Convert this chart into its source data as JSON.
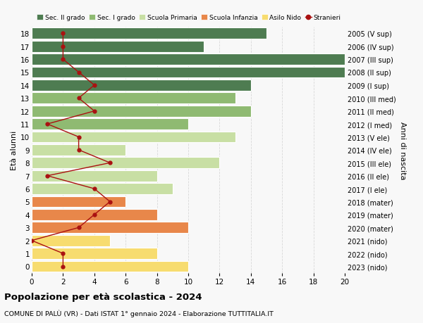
{
  "ages": [
    0,
    1,
    2,
    3,
    4,
    5,
    6,
    7,
    8,
    9,
    10,
    11,
    12,
    13,
    14,
    15,
    16,
    17,
    18
  ],
  "right_labels": [
    "2023 (nido)",
    "2022 (nido)",
    "2021 (nido)",
    "2020 (mater)",
    "2019 (mater)",
    "2018 (mater)",
    "2017 (I ele)",
    "2016 (II ele)",
    "2015 (III ele)",
    "2014 (IV ele)",
    "2013 (V ele)",
    "2012 (I med)",
    "2011 (II med)",
    "2010 (III med)",
    "2009 (I sup)",
    "2008 (II sup)",
    "2007 (III sup)",
    "2006 (IV sup)",
    "2005 (V sup)"
  ],
  "bar_values": [
    10,
    8,
    5,
    10,
    8,
    6,
    9,
    8,
    12,
    6,
    13,
    10,
    14,
    13,
    14,
    20,
    20,
    11,
    15
  ],
  "bar_colors": [
    "#f7dc6f",
    "#f7dc6f",
    "#f7dc6f",
    "#e8874a",
    "#e8874a",
    "#e8874a",
    "#c8dfa4",
    "#c8dfa4",
    "#c8dfa4",
    "#c8dfa4",
    "#c8dfa4",
    "#8fba72",
    "#8fba72",
    "#8fba72",
    "#4e7c51",
    "#4e7c51",
    "#4e7c51",
    "#4e7c51",
    "#4e7c51"
  ],
  "stranieri_values": [
    2,
    2,
    0,
    3,
    4,
    5,
    4,
    1,
    5,
    3,
    3,
    1,
    4,
    3,
    4,
    3,
    2,
    2,
    2
  ],
  "legend_labels": [
    "Sec. II grado",
    "Sec. I grado",
    "Scuola Primaria",
    "Scuola Infanzia",
    "Asilo Nido",
    "Stranieri"
  ],
  "legend_colors": [
    "#4e7c51",
    "#8fba72",
    "#c8dfa4",
    "#e8874a",
    "#f7dc6f",
    "#aa1111"
  ],
  "title": "Popolazione per età scolastica - 2024",
  "subtitle": "COMUNE DI PALÙ (VR) - Dati ISTAT 1° gennaio 2024 - Elaborazione TUTTITALIA.IT",
  "ylabel_left": "Età alunni",
  "ylabel_right": "Anni di nascita",
  "xlim": [
    0,
    20
  ],
  "xticks": [
    0,
    2,
    4,
    6,
    8,
    10,
    12,
    14,
    16,
    18,
    20
  ],
  "background_color": "#f8f8f8",
  "grid_color": "#d8d8d8"
}
